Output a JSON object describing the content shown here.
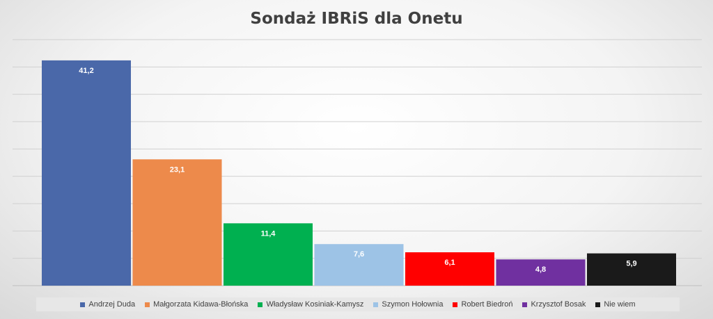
{
  "chart_data": {
    "type": "bar",
    "title": "Sondaż IBRiS dla Onetu",
    "xlabel": "",
    "ylabel": "",
    "ylim": [
      0,
      45
    ],
    "grid": true,
    "legend_position": "bottom",
    "categories": [
      "Andrzej Duda",
      "Małgorzata Kidawa-Błońska",
      "Władysław Kosiniak-Kamysz",
      "Szymon Hołownia",
      "Robert Biedroń",
      "Krzysztof Bosak",
      "Nie wiem"
    ],
    "values": [
      41.2,
      23.1,
      11.4,
      7.6,
      6.1,
      4.8,
      5.9
    ],
    "data_labels": [
      "41,2",
      "23,1",
      "11,4",
      "7,6",
      "6,1",
      "4,8",
      "5,9"
    ],
    "colors": [
      "#4a68a9",
      "#ed8a4b",
      "#00b050",
      "#9dc3e6",
      "#ff0000",
      "#7030a0",
      "#1a1a1a"
    ]
  }
}
